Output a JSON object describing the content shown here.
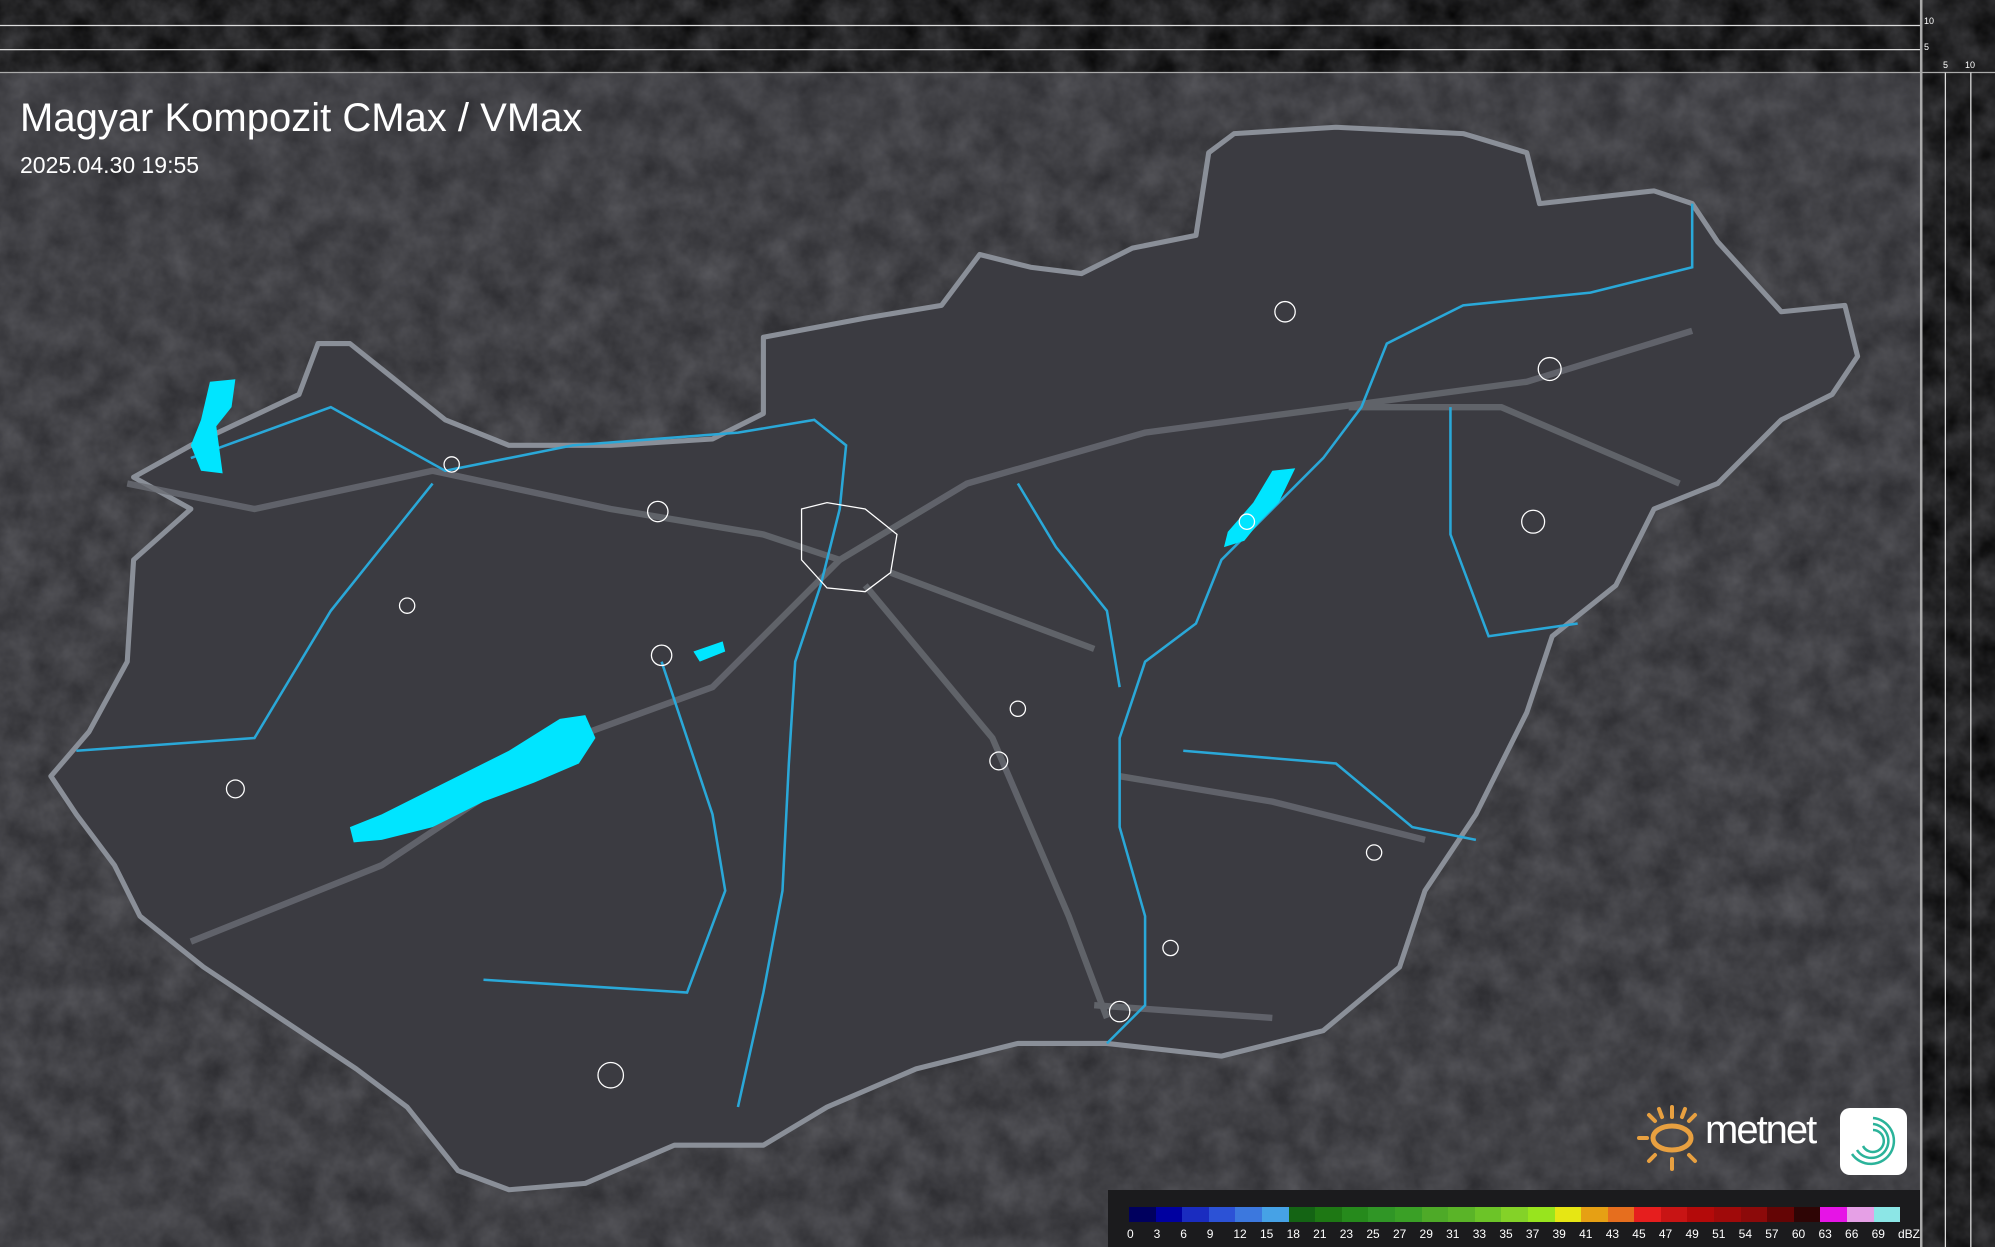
{
  "header": {
    "title": "Magyar Kompozit CMax / VMax",
    "timestamp": "2025.04.30 19:55"
  },
  "scale_axes": {
    "vertical_ticks": [
      "10",
      "5"
    ],
    "horizontal_ticks": [
      "5",
      "10"
    ]
  },
  "legend": {
    "unit": "dBZ",
    "labels": [
      "0",
      "3",
      "6",
      "9",
      "12",
      "15",
      "18",
      "21",
      "23",
      "25",
      "27",
      "29",
      "31",
      "33",
      "35",
      "37",
      "39",
      "41",
      "43",
      "45",
      "47",
      "49",
      "51",
      "54",
      "57",
      "60",
      "63",
      "66",
      "69"
    ],
    "colors": [
      "#00005e",
      "#0000a0",
      "#1a2cc0",
      "#2c52d6",
      "#3c78de",
      "#46a2e6",
      "#146414",
      "#1e7814",
      "#268a1c",
      "#309626",
      "#3aa026",
      "#4eaa28",
      "#5ab428",
      "#6cc428",
      "#84d228",
      "#98e41e",
      "#e6e614",
      "#e6a014",
      "#e66e1e",
      "#e61e1e",
      "#c81414",
      "#b40a0a",
      "#a00a0a",
      "#8c0a0a",
      "#640505",
      "#2e0505",
      "#e614e6",
      "#e6a0e6",
      "#8ce6e6"
    ]
  },
  "branding": {
    "logo_text": "metnet"
  },
  "colors": {
    "water": "#00e5ff",
    "rivers": "#2aa8d8",
    "border": "#8a8f98",
    "background": "#2b2b2f",
    "country": "#3b3b41"
  }
}
